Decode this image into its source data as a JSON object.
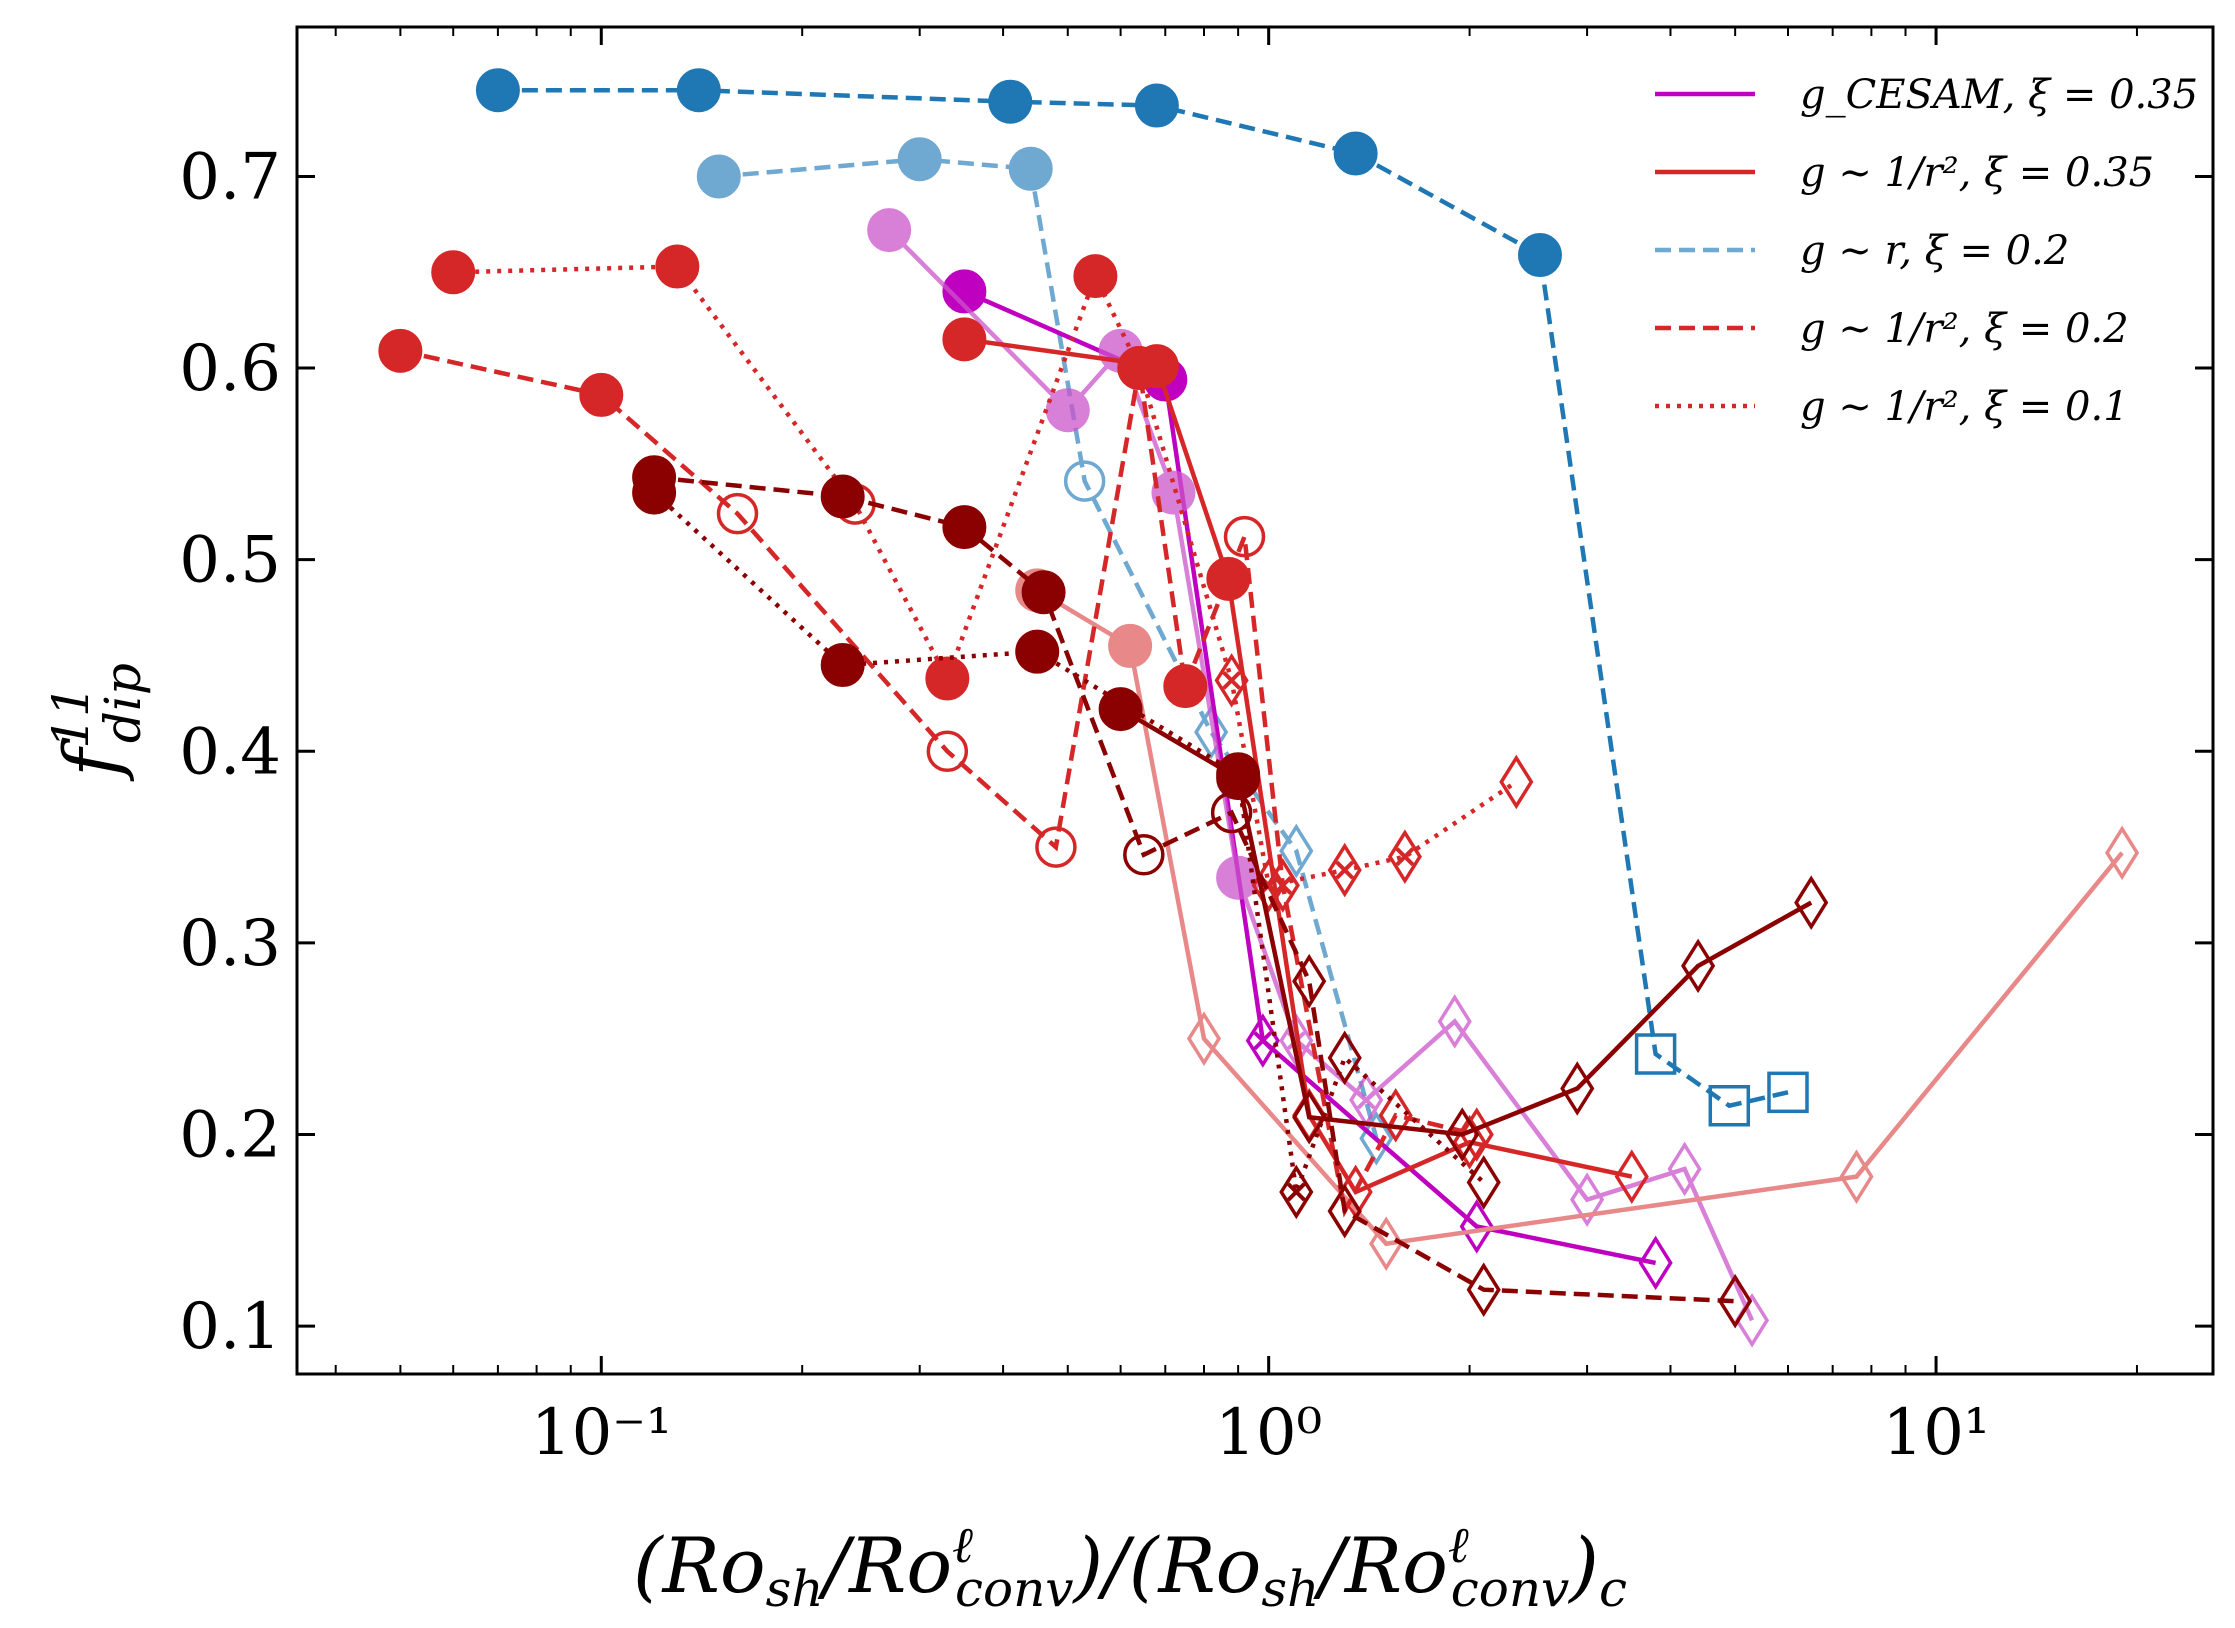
{
  "chart_data": {
    "type": "scatter",
    "xscale": "log",
    "xlim": [
      0.035,
      26
    ],
    "ylim": [
      0.075,
      0.778
    ],
    "grid": false,
    "legend_placement": "top-right",
    "xlabel": "(Ro_sh/Ro^ℓ_conv)/(Ro_sh/Ro^ℓ_conv)_c",
    "ylabel": "f^11_dip",
    "xticks": [
      0.1,
      1,
      10
    ],
    "xtick_labels": [
      "10⁻¹",
      "10⁰",
      "10¹"
    ],
    "yticks": [
      0.1,
      0.2,
      0.3,
      0.4,
      0.5,
      0.6,
      0.7
    ],
    "ytick_labels": [
      "0.1",
      "0.2",
      "0.3",
      "0.4",
      "0.5",
      "0.6",
      "0.7"
    ],
    "legend": [
      {
        "label": "g_CESAM, ξ = 0.35",
        "color": "#c000c0",
        "dash": "solid"
      },
      {
        "label": "g ∼ 1/r², ξ = 0.35",
        "color": "#d62728",
        "dash": "solid"
      },
      {
        "label": "g ∼ r, ξ = 0.2",
        "color": "#6fa8d0",
        "dash": "dashed"
      },
      {
        "label": "g ∼ 1/r², ξ = 0.2",
        "color": "#d62728",
        "dash": "dashed"
      },
      {
        "label": "g ∼ 1/r², ξ = 0.1",
        "color": "#d62728",
        "dash": "dotted"
      }
    ],
    "series": [
      {
        "color": "#1f77b4",
        "dash": "dashed",
        "opacity": 1,
        "points": [
          [
            0.07,
            0.745,
            "circle"
          ],
          [
            0.14,
            0.745,
            "circle"
          ],
          [
            0.41,
            0.739,
            "circle"
          ],
          [
            0.68,
            0.737,
            "circle"
          ],
          [
            1.35,
            0.712,
            "circle"
          ],
          [
            2.55,
            0.659,
            "circle"
          ],
          [
            3.8,
            0.242,
            "square"
          ],
          [
            4.9,
            0.215,
            "square"
          ],
          [
            6.0,
            0.222,
            "square"
          ]
        ]
      },
      {
        "color": "#6fa8d0",
        "dash": "dashed",
        "opacity": 1,
        "points": [
          [
            0.15,
            0.7,
            "circle"
          ],
          [
            0.3,
            0.709,
            "circle"
          ],
          [
            0.44,
            0.704,
            "circle"
          ],
          [
            0.53,
            0.541,
            "ocircle"
          ],
          [
            0.82,
            0.41,
            "diamond"
          ],
          [
            1.1,
            0.348,
            "diamond"
          ],
          [
            1.45,
            0.198,
            "diamond"
          ]
        ]
      },
      {
        "color": "#c000c0",
        "dash": "solid",
        "opacity": 1,
        "points": [
          [
            0.35,
            0.64,
            "circle"
          ],
          [
            0.7,
            0.594,
            "circle"
          ],
          [
            0.98,
            0.249,
            "xdiamond"
          ],
          [
            2.05,
            0.152,
            "diamond"
          ],
          [
            3.8,
            0.133,
            "diamond"
          ]
        ]
      },
      {
        "color": "#cc55cc",
        "dash": "solid",
        "opacity": 0.75,
        "points": [
          [
            0.27,
            0.672,
            "circle"
          ],
          [
            0.5,
            0.578,
            "circle"
          ],
          [
            0.6,
            0.609,
            "circle"
          ],
          [
            0.72,
            0.535,
            "circle"
          ],
          [
            0.9,
            0.334,
            "circle"
          ],
          [
            1.1,
            0.249,
            "xdiamond"
          ],
          [
            1.4,
            0.218,
            "xdiamond"
          ],
          [
            1.9,
            0.259,
            "diamond"
          ],
          [
            3.0,
            0.166,
            "diamond"
          ],
          [
            4.2,
            0.182,
            "diamond"
          ],
          [
            5.3,
            0.103,
            "diamond"
          ]
        ]
      },
      {
        "color": "#d62728",
        "dash": "solid",
        "opacity": 1,
        "points": [
          [
            0.35,
            0.615,
            "circle"
          ],
          [
            0.68,
            0.601,
            "circle"
          ],
          [
            0.87,
            0.49,
            "circle"
          ],
          [
            1.15,
            0.21,
            "diamond"
          ],
          [
            1.35,
            0.17,
            "diamond"
          ],
          [
            2.0,
            0.196,
            "diamond"
          ],
          [
            3.5,
            0.178,
            "diamond"
          ]
        ]
      },
      {
        "color": "#e88888",
        "dash": "solid",
        "opacity": 1,
        "points": [
          [
            0.45,
            0.484,
            "circle"
          ],
          [
            0.62,
            0.455,
            "circle"
          ],
          [
            0.8,
            0.25,
            "diamond"
          ],
          [
            1.5,
            0.143,
            "diamond"
          ],
          [
            7.6,
            0.178,
            "diamond"
          ],
          [
            19.0,
            0.347,
            "diamond"
          ]
        ]
      },
      {
        "color": "#d62728",
        "dash": "dashed",
        "opacity": 1,
        "points": [
          [
            0.05,
            0.609,
            "circle"
          ],
          [
            0.1,
            0.586,
            "circle"
          ],
          [
            0.16,
            0.524,
            "ocircle"
          ],
          [
            0.33,
            0.4,
            "ocircle"
          ],
          [
            0.48,
            0.35,
            "ocircle"
          ],
          [
            0.64,
            0.6,
            "circle"
          ],
          [
            0.75,
            0.434,
            "circle"
          ],
          [
            0.92,
            0.512,
            "ocircle"
          ],
          [
            1.05,
            0.33,
            "xdiamond"
          ],
          [
            1.3,
            0.16,
            "diamond"
          ],
          [
            1.55,
            0.21,
            "diamond"
          ],
          [
            2.05,
            0.2,
            "diamond"
          ]
        ]
      },
      {
        "color": "#d62728",
        "dash": "dotted",
        "opacity": 1,
        "points": [
          [
            0.06,
            0.65,
            "circle"
          ],
          [
            0.13,
            0.653,
            "circle"
          ],
          [
            0.24,
            0.529,
            "ocircle"
          ],
          [
            0.33,
            0.438,
            "circle"
          ],
          [
            0.55,
            0.648,
            "circle"
          ],
          [
            0.64,
            0.6,
            "circle"
          ],
          [
            0.88,
            0.437,
            "xdiamond"
          ],
          [
            1.0,
            0.33,
            "xdiamond"
          ],
          [
            1.3,
            0.338,
            "xdiamond"
          ],
          [
            1.6,
            0.345,
            "xdiamond"
          ],
          [
            2.35,
            0.384,
            "diamond"
          ]
        ]
      },
      {
        "color": "#8b0000",
        "dash": "solid",
        "opacity": 1,
        "points": [
          [
            0.6,
            0.422,
            "circle"
          ],
          [
            0.9,
            0.386,
            "circle"
          ],
          [
            1.15,
            0.209,
            "diamond"
          ],
          [
            1.95,
            0.2,
            "diamond"
          ],
          [
            2.9,
            0.224,
            "diamond"
          ],
          [
            4.4,
            0.288,
            "diamond"
          ],
          [
            6.5,
            0.321,
            "diamond"
          ]
        ]
      },
      {
        "color": "#8b0000",
        "dash": "dashed",
        "opacity": 1,
        "points": [
          [
            0.12,
            0.543,
            "circle"
          ],
          [
            0.23,
            0.533,
            "circle"
          ],
          [
            0.35,
            0.517,
            "circle"
          ],
          [
            0.46,
            0.483,
            "circle"
          ],
          [
            0.65,
            0.346,
            "ocircle"
          ],
          [
            0.88,
            0.368,
            "ocircle"
          ],
          [
            1.15,
            0.28,
            "diamond"
          ],
          [
            1.3,
            0.16,
            "diamond"
          ],
          [
            2.1,
            0.119,
            "diamond"
          ],
          [
            5.0,
            0.113,
            "diamond"
          ]
        ]
      },
      {
        "color": "#8b0000",
        "dash": "dotted",
        "opacity": 1,
        "points": [
          [
            0.12,
            0.535,
            "circle"
          ],
          [
            0.23,
            0.445,
            "circle"
          ],
          [
            0.45,
            0.452,
            "circle"
          ],
          [
            0.9,
            0.388,
            "circle"
          ],
          [
            1.1,
            0.17,
            "xdiamond"
          ],
          [
            1.3,
            0.24,
            "diamond"
          ],
          [
            2.1,
            0.175,
            "diamond"
          ]
        ]
      }
    ]
  }
}
